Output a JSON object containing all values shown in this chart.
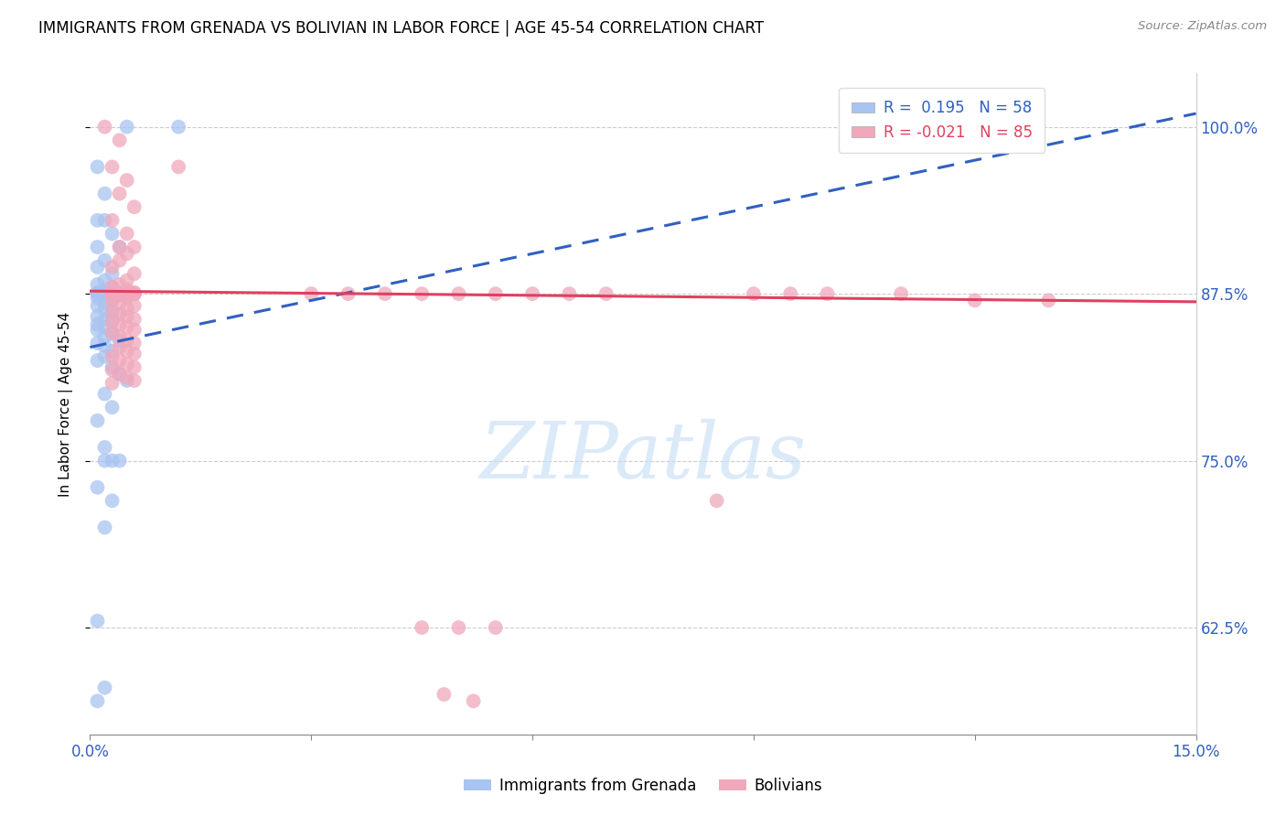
{
  "title": "IMMIGRANTS FROM GRENADA VS BOLIVIAN IN LABOR FORCE | AGE 45-54 CORRELATION CHART",
  "source": "Source: ZipAtlas.com",
  "ylabel": "In Labor Force | Age 45-54",
  "xlim": [
    0.0,
    0.15
  ],
  "ylim": [
    0.545,
    1.04
  ],
  "yticks": [
    0.625,
    0.75,
    0.875,
    1.0
  ],
  "ytick_labels": [
    "62.5%",
    "75.0%",
    "87.5%",
    "100.0%"
  ],
  "r_grenada": 0.195,
  "n_grenada": 58,
  "r_bolivian": -0.021,
  "n_bolivian": 85,
  "grenada_color": "#a8c4f0",
  "bolivian_color": "#f0a8bc",
  "trend_grenada_color": "#3060c0",
  "trend_bolivian_color": "#e04060",
  "background_color": "#ffffff",
  "grid_color": "#cccccc",
  "grenada_x": [
    0.005,
    0.012,
    0.001,
    0.002,
    0.001,
    0.002,
    0.003,
    0.001,
    0.004,
    0.002,
    0.001,
    0.003,
    0.002,
    0.001,
    0.003,
    0.002,
    0.001,
    0.004,
    0.002,
    0.003,
    0.001,
    0.002,
    0.001,
    0.003,
    0.002,
    0.001,
    0.002,
    0.003,
    0.001,
    0.002,
    0.003,
    0.001,
    0.002,
    0.001,
    0.003,
    0.002,
    0.004,
    0.001,
    0.002,
    0.003,
    0.002,
    0.001,
    0.003,
    0.004,
    0.005,
    0.002,
    0.003,
    0.001,
    0.002,
    0.004,
    0.003,
    0.002,
    0.001,
    0.003,
    0.002,
    0.001,
    0.002,
    0.001
  ],
  "grenada_y": [
    1.0,
    1.0,
    0.97,
    0.95,
    0.93,
    0.93,
    0.92,
    0.91,
    0.91,
    0.9,
    0.895,
    0.89,
    0.885,
    0.882,
    0.88,
    0.878,
    0.876,
    0.875,
    0.875,
    0.875,
    0.875,
    0.874,
    0.872,
    0.87,
    0.868,
    0.866,
    0.863,
    0.86,
    0.858,
    0.856,
    0.855,
    0.852,
    0.85,
    0.848,
    0.845,
    0.843,
    0.84,
    0.838,
    0.836,
    0.832,
    0.828,
    0.825,
    0.82,
    0.815,
    0.81,
    0.8,
    0.79,
    0.78,
    0.76,
    0.75,
    0.75,
    0.75,
    0.73,
    0.72,
    0.7,
    0.63,
    0.58,
    0.57
  ],
  "bolivian_x": [
    0.002,
    0.004,
    0.003,
    0.005,
    0.004,
    0.006,
    0.003,
    0.005,
    0.004,
    0.006,
    0.005,
    0.004,
    0.003,
    0.006,
    0.005,
    0.004,
    0.003,
    0.005,
    0.006,
    0.004,
    0.005,
    0.003,
    0.006,
    0.004,
    0.005,
    0.003,
    0.004,
    0.006,
    0.005,
    0.003,
    0.004,
    0.005,
    0.006,
    0.003,
    0.004,
    0.005,
    0.006,
    0.003,
    0.004,
    0.005,
    0.006,
    0.004,
    0.005,
    0.006,
    0.003,
    0.004,
    0.005,
    0.006,
    0.003,
    0.004,
    0.005,
    0.006,
    0.003,
    0.012,
    0.004,
    0.005,
    0.006,
    0.003,
    0.004,
    0.005,
    0.006,
    0.004,
    0.005,
    0.006,
    0.06,
    0.05,
    0.07,
    0.04,
    0.045,
    0.055,
    0.03,
    0.035,
    0.065,
    0.12,
    0.11,
    0.1,
    0.13,
    0.09,
    0.085,
    0.095,
    0.05,
    0.055,
    0.045,
    0.048,
    0.052
  ],
  "bolivian_y": [
    1.0,
    0.99,
    0.97,
    0.96,
    0.95,
    0.94,
    0.93,
    0.92,
    0.91,
    0.91,
    0.905,
    0.9,
    0.895,
    0.89,
    0.885,
    0.882,
    0.88,
    0.878,
    0.876,
    0.875,
    0.875,
    0.875,
    0.875,
    0.874,
    0.872,
    0.87,
    0.868,
    0.866,
    0.864,
    0.862,
    0.86,
    0.858,
    0.856,
    0.854,
    0.852,
    0.85,
    0.848,
    0.846,
    0.843,
    0.84,
    0.838,
    0.835,
    0.832,
    0.83,
    0.828,
    0.825,
    0.822,
    0.82,
    0.818,
    0.815,
    0.812,
    0.81,
    0.808,
    0.97,
    0.875,
    0.875,
    0.875,
    0.875,
    0.875,
    0.875,
    0.875,
    0.875,
    0.875,
    0.875,
    0.875,
    0.875,
    0.875,
    0.875,
    0.875,
    0.875,
    0.875,
    0.875,
    0.875,
    0.87,
    0.875,
    0.875,
    0.87,
    0.875,
    0.72,
    0.875,
    0.625,
    0.625,
    0.625,
    0.575,
    0.57
  ]
}
